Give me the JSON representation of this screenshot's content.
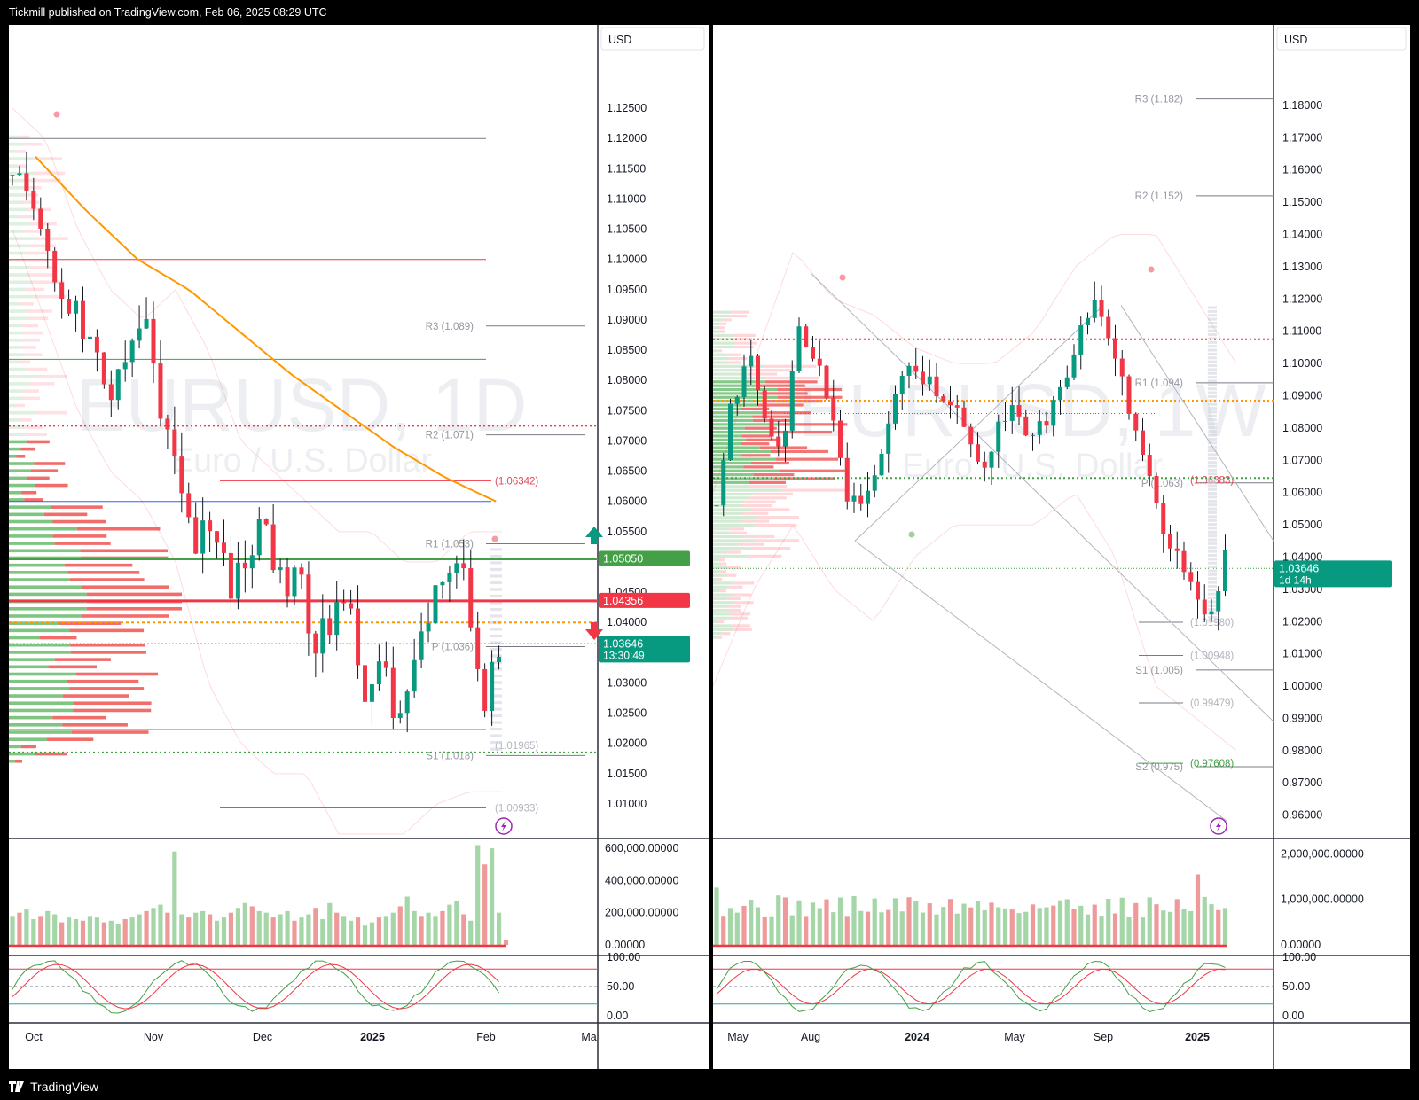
{
  "header": {
    "publish_text": "Tickmill published on TradingView.com, Feb 06, 2025 08:29 UTC"
  },
  "footer": {
    "brand": "TradingView"
  },
  "left_chart": {
    "currency": "USD",
    "watermark_symbol": "EURUSD, 1D",
    "watermark_name": "Euro / U.S. Dollar",
    "price_axis": [
      "1.12500",
      "1.12000",
      "1.11500",
      "1.11000",
      "1.10500",
      "1.10000",
      "1.09500",
      "1.09000",
      "1.08500",
      "1.08000",
      "1.07500",
      "1.07000",
      "1.06500",
      "1.06000",
      "1.05500",
      "1.05000",
      "1.04500",
      "1.04000",
      "1.03500",
      "1.03000",
      "1.02500",
      "1.02000",
      "1.01500",
      "1.01000"
    ],
    "price_min": 1.0075,
    "price_max": 1.13,
    "time_axis": [
      "Oct",
      "Nov",
      "Dec",
      "2025",
      "Feb",
      "Ma"
    ],
    "pivots": [
      {
        "label": "R3 (1.089)",
        "price": 1.089
      },
      {
        "label": "R2 (1.071)",
        "price": 1.071
      },
      {
        "label": "R1 (1.053)",
        "price": 1.053
      },
      {
        "label": "P (1.036)",
        "price": 1.036
      },
      {
        "label": "S1 (1.018)",
        "price": 1.018
      }
    ],
    "level_labels": [
      {
        "label": "(1.06342)",
        "price": 1.06342,
        "color": "#e5485a"
      },
      {
        "label": "(1.01965)",
        "price": 1.01965,
        "color": "#b2b5be"
      },
      {
        "label": "(1.00933)",
        "price": 1.00933,
        "color": "#b2b5be"
      }
    ],
    "price_tags": [
      {
        "value": "1.05050",
        "price": 1.0505,
        "bg": "#43a047"
      },
      {
        "value": "1.04356",
        "price": 1.04356,
        "bg": "#f23645"
      },
      {
        "value": "1.03646",
        "sub": "13:30:49",
        "price": 1.03646,
        "bg": "#089981"
      }
    ],
    "volume_axis": [
      "600,000.00000",
      "400,000.00000",
      "200,000.00000",
      "0.00000"
    ],
    "volume_max": 650000,
    "volumes": [
      180,
      200,
      220,
      160,
      180,
      210,
      190,
      140,
      170,
      160,
      150,
      180,
      170,
      140,
      150,
      130,
      160,
      170,
      190,
      210,
      230,
      250,
      200,
      580,
      190,
      170,
      200,
      210,
      190,
      150,
      170,
      200,
      230,
      260,
      240,
      210,
      200,
      170,
      190,
      210,
      150,
      170,
      190,
      230,
      160,
      260,
      200,
      180,
      150,
      170,
      120,
      140,
      170,
      180,
      200,
      240,
      300,
      210,
      180,
      200,
      180,
      210,
      250,
      270,
      190,
      150,
      620,
      500,
      600,
      200,
      30
    ],
    "oscillator_axis": [
      "100.00",
      "50.00",
      "0.00"
    ]
  },
  "right_chart": {
    "currency": "USD",
    "watermark_symbol": "EURUSD, 1W",
    "watermark_name": "Euro / U.S. Dollar",
    "price_axis": [
      "1.18000",
      "1.17000",
      "1.16000",
      "1.15000",
      "1.14000",
      "1.13000",
      "1.12000",
      "1.11000",
      "1.10000",
      "1.09000",
      "1.08000",
      "1.07000",
      "1.06000",
      "1.05000",
      "1.04000",
      "1.03000",
      "1.02000",
      "1.01000",
      "1.00000",
      "0.99000",
      "0.98000",
      "0.97000",
      "0.96000"
    ],
    "price_min": 0.9555,
    "price_max": 1.1885,
    "time_axis": [
      "May",
      "Aug",
      "2024",
      "May",
      "Sep",
      "2025"
    ],
    "pivots": [
      {
        "label": "R3 (1.182)",
        "price": 1.182
      },
      {
        "label": "R2 (1.152)",
        "price": 1.152
      },
      {
        "label": "R1 (1.094)",
        "price": 1.094
      },
      {
        "label": "P (1.063)",
        "price": 1.063
      },
      {
        "label": "S1 (1.005)",
        "price": 1.005
      },
      {
        "label": "S2 (0.975)",
        "price": 0.975
      }
    ],
    "level_labels": [
      {
        "label": "(1.06383)",
        "price": 1.06383,
        "color": "#e5485a"
      },
      {
        "label": "(1.01980)",
        "price": 1.0198,
        "color": "#b2b5be"
      },
      {
        "label": "(1.00948)",
        "price": 1.00948,
        "color": "#b2b5be"
      },
      {
        "label": "(0.99479)",
        "price": 0.99479,
        "color": "#b2b5be"
      },
      {
        "label": "(0.97608)",
        "price": 0.97608,
        "color": "#43a047"
      }
    ],
    "price_tags": [
      {
        "value": "1.03646",
        "sub": "1d 14h",
        "price": 1.03646,
        "bg": "#089981"
      }
    ],
    "volume_axis": [
      "2,000,000.00000",
      "1,000,000.00000",
      "0.00000"
    ],
    "volume_max": 2300000,
    "oscillator_axis": [
      "100.00",
      "50.00",
      "0.00"
    ]
  }
}
